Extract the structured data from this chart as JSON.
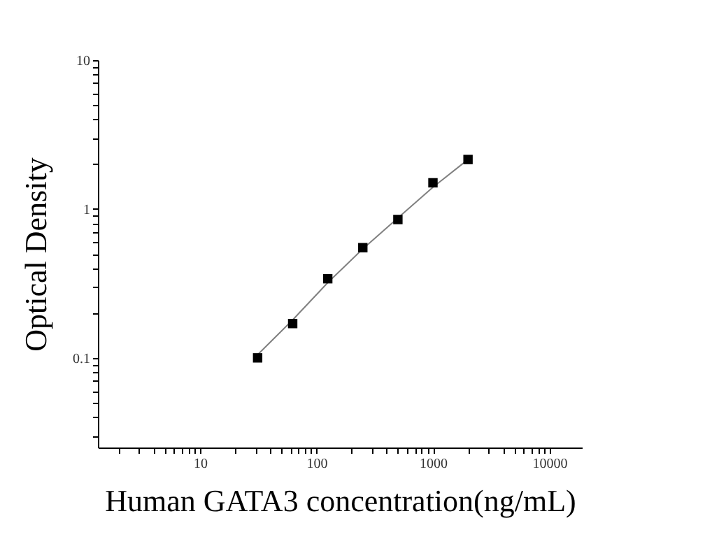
{
  "chart_data": {
    "type": "scatter",
    "xlabel": "Human GATA3 concentration(ng/mL)",
    "ylabel": "Optical Density",
    "log": "xy",
    "grid": false,
    "marker": "square",
    "xlim": [
      1.33,
      19000
    ],
    "ylim": [
      0.025,
      10
    ],
    "xticks": [
      {
        "value": 2,
        "label": null
      },
      {
        "value": 3,
        "label": null
      },
      {
        "value": 4,
        "label": null
      },
      {
        "value": 5,
        "label": null
      },
      {
        "value": 6,
        "label": null
      },
      {
        "value": 7,
        "label": null
      },
      {
        "value": 8,
        "label": null
      },
      {
        "value": 9,
        "label": null
      },
      10,
      {
        "value": 20,
        "label": null
      },
      {
        "value": 30,
        "label": null
      },
      {
        "value": 40,
        "label": null
      },
      {
        "value": 50,
        "label": null
      },
      {
        "value": 60,
        "label": null
      },
      {
        "value": 70,
        "label": null
      },
      {
        "value": 80,
        "label": null
      },
      {
        "value": 90,
        "label": null
      },
      100,
      {
        "value": 200,
        "label": null
      },
      {
        "value": 300,
        "label": null
      },
      {
        "value": 400,
        "label": null
      },
      {
        "value": 500,
        "label": null
      },
      {
        "value": 600,
        "label": null
      },
      {
        "value": 700,
        "label": null
      },
      {
        "value": 800,
        "label": null
      },
      {
        "value": 900,
        "label": null
      },
      1000,
      {
        "value": 2000,
        "label": null
      },
      {
        "value": 3000,
        "label": null
      },
      {
        "value": 4000,
        "label": null
      },
      {
        "value": 5000,
        "label": null
      },
      {
        "value": 6000,
        "label": null
      },
      {
        "value": 7000,
        "label": null
      },
      {
        "value": 8000,
        "label": null
      },
      {
        "value": 9000,
        "label": null
      },
      10000
    ],
    "yticks": [
      {
        "value": 0.03,
        "label": null
      },
      {
        "value": 0.04,
        "label": null
      },
      {
        "value": 0.05,
        "label": null
      },
      {
        "value": 0.06,
        "label": null
      },
      {
        "value": 0.07,
        "label": null
      },
      {
        "value": 0.08,
        "label": null
      },
      {
        "value": 0.09,
        "label": null
      },
      0.1,
      {
        "value": 0.2,
        "label": null
      },
      {
        "value": 0.3,
        "label": null
      },
      {
        "value": 0.4,
        "label": null
      },
      {
        "value": 0.5,
        "label": null
      },
      {
        "value": 0.6,
        "label": null
      },
      {
        "value": 0.7,
        "label": null
      },
      {
        "value": 0.8,
        "label": null
      },
      {
        "value": 0.9,
        "label": null
      },
      1,
      {
        "value": 2,
        "label": null
      },
      {
        "value": 3,
        "label": null
      },
      {
        "value": 4,
        "label": null
      },
      {
        "value": 5,
        "label": null
      },
      {
        "value": 6,
        "label": null
      },
      {
        "value": 7,
        "label": null
      },
      {
        "value": 8,
        "label": null
      },
      {
        "value": 9,
        "label": null
      },
      10
    ],
    "series": [
      {
        "type": "line",
        "color": "#808080",
        "line_style": "solid",
        "marker": "none",
        "x": [
          31.25,
          62.5,
          125,
          250,
          500,
          1000,
          2000
        ],
        "values": [
          0.105,
          0.18,
          0.32,
          0.54,
          0.87,
          1.4,
          2.15
        ]
      },
      {
        "color": "#000000",
        "x": [
          31.25,
          62.5,
          125,
          250,
          500,
          1000,
          2000
        ],
        "values": [
          0.1,
          0.17,
          0.34,
          0.55,
          0.85,
          1.5,
          2.15
        ]
      }
    ]
  }
}
